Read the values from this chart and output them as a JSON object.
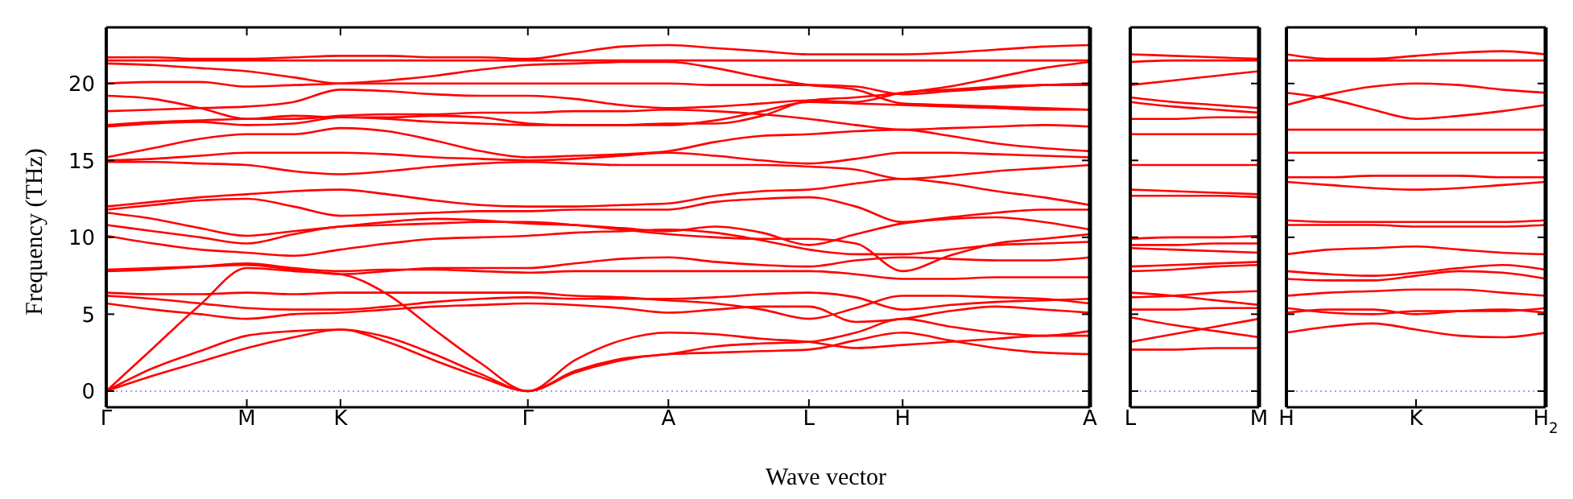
{
  "chart_data": [
    {
      "type": "line",
      "ylabel": "Frequency (THz)",
      "xlabel": "Wave vector",
      "categories": [
        "Γ",
        null,
        null,
        "M",
        null,
        "K",
        null,
        null,
        null,
        "Γ",
        null,
        null,
        "A",
        null,
        null,
        "L",
        null,
        "H",
        null,
        null,
        null,
        "A"
      ],
      "ylim": [
        -1.05,
        23.65
      ],
      "yticks": [
        0,
        5,
        10,
        15,
        20
      ],
      "ref_lines": [
        {
          "axis": "y",
          "value": 0,
          "color": "#8080ff",
          "line_style": "dotted"
        }
      ],
      "series": [
        {
          "color": "#ff0000",
          "values": [
            0,
            1.0,
            1.9,
            2.8,
            3.5,
            4.0,
            3.2,
            2.0,
            0.9,
            0,
            1.2,
            2.0,
            2.4,
            2.5,
            2.6,
            2.7,
            3.3,
            3.8,
            3.3,
            2.8,
            2.5,
            2.4
          ]
        },
        {
          "color": "#ff0000",
          "values": [
            0,
            1.5,
            2.6,
            3.6,
            3.9,
            4.0,
            3.5,
            2.4,
            1.1,
            0,
            1.3,
            2.1,
            2.4,
            2.9,
            3.1,
            3.2,
            3.8,
            4.7,
            4.2,
            3.8,
            3.6,
            3.9
          ]
        },
        {
          "color": "#ff0000",
          "values": [
            0,
            2.8,
            5.6,
            8.0,
            7.8,
            7.6,
            6.3,
            4.0,
            1.8,
            0,
            2.0,
            3.3,
            3.8,
            3.7,
            3.4,
            3.2,
            2.8,
            3.0,
            3.2,
            3.4,
            3.6,
            3.6
          ]
        },
        {
          "color": "#ff0000",
          "values": [
            5.7,
            5.3,
            5.0,
            4.7,
            5.0,
            5.1,
            5.3,
            5.5,
            5.6,
            5.7,
            5.6,
            5.4,
            5.1,
            5.3,
            5.5,
            5.5,
            4.5,
            4.7,
            5.2,
            5.5,
            5.3,
            5.1
          ]
        },
        {
          "color": "#ff0000",
          "values": [
            6.2,
            6.0,
            5.7,
            5.4,
            5.3,
            5.3,
            5.5,
            5.8,
            6.0,
            6.1,
            6.0,
            6.0,
            6.0,
            6.1,
            6.3,
            6.4,
            6.1,
            5.3,
            5.6,
            5.8,
            5.9,
            6.0
          ]
        },
        {
          "color": "#ff0000",
          "values": [
            6.4,
            6.3,
            6.3,
            6.4,
            6.3,
            6.4,
            6.4,
            6.4,
            6.4,
            6.4,
            6.2,
            6.1,
            5.9,
            5.7,
            5.3,
            4.7,
            5.4,
            6.2,
            6.2,
            6.1,
            6.0,
            5.7
          ]
        },
        {
          "color": "#ff0000",
          "values": [
            7.8,
            7.9,
            8.1,
            8.3,
            8.0,
            7.8,
            7.9,
            7.9,
            7.8,
            7.7,
            7.8,
            7.8,
            7.8,
            7.8,
            7.8,
            7.8,
            7.6,
            7.3,
            7.3,
            7.4,
            7.4,
            7.4
          ]
        },
        {
          "color": "#ff0000",
          "values": [
            7.9,
            8.0,
            8.1,
            8.2,
            7.9,
            7.6,
            7.8,
            8.0,
            8.0,
            8.0,
            8.3,
            8.6,
            8.7,
            8.4,
            8.2,
            8.1,
            8.5,
            8.7,
            8.6,
            8.5,
            8.5,
            8.7
          ]
        },
        {
          "color": "#ff0000",
          "values": [
            10.1,
            9.6,
            9.2,
            9.0,
            8.8,
            9.2,
            9.6,
            9.9,
            10.0,
            10.1,
            10.3,
            10.4,
            10.5,
            10.3,
            9.8,
            9.2,
            8.9,
            8.9,
            9.2,
            9.5,
            9.6,
            9.7
          ]
        },
        {
          "color": "#ff0000",
          "values": [
            10.8,
            10.4,
            10.0,
            9.6,
            10.2,
            10.7,
            10.8,
            10.9,
            11.0,
            11.0,
            10.8,
            10.5,
            10.2,
            10.0,
            9.9,
            9.9,
            9.6,
            7.8,
            8.8,
            9.6,
            9.9,
            10.2
          ]
        },
        {
          "color": "#ff0000",
          "values": [
            11.6,
            11.2,
            10.6,
            10.1,
            10.4,
            10.7,
            11.0,
            11.2,
            11.1,
            10.9,
            10.8,
            10.6,
            10.4,
            10.7,
            10.3,
            9.5,
            10.2,
            10.9,
            11.2,
            11.3,
            11.0,
            10.5
          ]
        },
        {
          "color": "#ff0000",
          "values": [
            11.8,
            12.1,
            12.4,
            12.5,
            12.0,
            11.4,
            11.5,
            11.6,
            11.7,
            11.7,
            11.8,
            11.8,
            11.8,
            12.3,
            12.5,
            12.6,
            12.0,
            11.0,
            11.3,
            11.6,
            11.8,
            11.8
          ]
        },
        {
          "color": "#ff0000",
          "values": [
            12.0,
            12.3,
            12.6,
            12.8,
            13.0,
            13.1,
            12.8,
            12.4,
            12.1,
            12.0,
            12.0,
            12.1,
            12.2,
            12.7,
            13.0,
            13.1,
            13.5,
            13.8,
            13.5,
            13.0,
            12.6,
            12.1
          ]
        },
        {
          "color": "#ff0000",
          "values": [
            14.9,
            14.9,
            14.8,
            14.7,
            14.3,
            14.1,
            14.3,
            14.6,
            14.8,
            14.9,
            14.8,
            14.7,
            14.7,
            14.7,
            14.7,
            14.6,
            14.4,
            13.8,
            14.0,
            14.3,
            14.5,
            14.7
          ]
        },
        {
          "color": "#ff0000",
          "values": [
            15.0,
            15.1,
            15.3,
            15.5,
            15.5,
            15.5,
            15.4,
            15.2,
            15.1,
            15.0,
            15.1,
            15.3,
            15.5,
            15.3,
            15.0,
            14.8,
            15.1,
            15.5,
            15.5,
            15.4,
            15.3,
            15.2
          ]
        },
        {
          "color": "#ff0000",
          "values": [
            15.2,
            15.8,
            16.4,
            16.7,
            16.7,
            17.1,
            16.9,
            16.3,
            15.6,
            15.2,
            15.3,
            15.4,
            15.6,
            16.2,
            16.6,
            16.7,
            16.9,
            17.0,
            16.6,
            16.1,
            15.8,
            15.6
          ]
        },
        {
          "color": "#ff0000",
          "values": [
            17.2,
            17.4,
            17.5,
            17.3,
            17.4,
            17.8,
            17.7,
            17.5,
            17.4,
            17.3,
            17.3,
            17.3,
            17.3,
            17.6,
            18.2,
            18.8,
            18.7,
            18.6,
            18.5,
            18.4,
            18.3,
            18.3
          ]
        },
        {
          "color": "#ff0000",
          "values": [
            17.3,
            17.5,
            17.6,
            17.7,
            17.7,
            17.9,
            18.0,
            18.0,
            18.1,
            18.1,
            18.2,
            18.2,
            18.3,
            18.2,
            18.0,
            17.7,
            17.3,
            17.0,
            17.1,
            17.2,
            17.3,
            17.2
          ]
        },
        {
          "color": "#ff0000",
          "values": [
            18.2,
            18.3,
            18.4,
            18.5,
            18.8,
            19.6,
            19.5,
            19.3,
            19.2,
            19.2,
            19.0,
            18.6,
            18.4,
            18.5,
            18.7,
            18.9,
            18.8,
            19.4,
            19.6,
            19.8,
            19.9,
            19.9
          ]
        },
        {
          "color": "#ff0000",
          "values": [
            19.2,
            19.0,
            18.4,
            17.7,
            17.9,
            17.8,
            17.8,
            17.9,
            17.8,
            17.4,
            17.3,
            17.3,
            17.4,
            17.4,
            17.9,
            18.9,
            19.1,
            19.4,
            19.8,
            20.4,
            21.0,
            21.4
          ]
        },
        {
          "color": "#ff0000",
          "values": [
            20.0,
            20.1,
            20.1,
            19.8,
            19.9,
            20.0,
            20.2,
            20.5,
            20.9,
            21.2,
            21.3,
            21.4,
            21.4,
            21.0,
            20.4,
            19.9,
            19.6,
            18.7,
            18.6,
            18.5,
            18.4,
            18.3
          ]
        },
        {
          "color": "#ff0000",
          "values": [
            21.3,
            21.2,
            21.0,
            20.8,
            20.4,
            20.0,
            20.0,
            20.0,
            20.0,
            20.0,
            20.0,
            20.0,
            20.0,
            19.9,
            19.9,
            19.9,
            19.8,
            19.3,
            19.5,
            19.7,
            19.9,
            20.0
          ]
        },
        {
          "color": "#ff0000",
          "values": [
            21.5,
            21.5,
            21.5,
            21.5,
            21.5,
            21.5,
            21.5,
            21.5,
            21.5,
            21.5,
            21.5,
            21.5,
            21.5,
            21.5,
            21.5,
            21.5,
            21.5,
            21.5,
            21.5,
            21.5,
            21.5,
            21.5
          ]
        },
        {
          "color": "#ff0000",
          "values": [
            21.7,
            21.7,
            21.6,
            21.6,
            21.7,
            21.8,
            21.8,
            21.7,
            21.7,
            21.6,
            22.0,
            22.4,
            22.5,
            22.3,
            22.1,
            21.9,
            21.9,
            21.9,
            22.0,
            22.2,
            22.4,
            22.5
          ]
        }
      ]
    },
    {
      "type": "line",
      "tick_labels": "x",
      "categories": [
        "L",
        null,
        null,
        "M"
      ],
      "ylim": [
        -1.05,
        23.65
      ],
      "yticks": [
        0,
        5,
        10,
        15,
        20
      ],
      "ref_lines": [
        {
          "axis": "y",
          "value": 0,
          "color": "#8080ff",
          "line_style": "dotted"
        }
      ],
      "series": [
        {
          "color": "#ff0000",
          "values": [
            2.7,
            2.7,
            2.8,
            2.8
          ]
        },
        {
          "color": "#ff0000",
          "values": [
            3.2,
            3.7,
            4.2,
            4.7
          ]
        },
        {
          "color": "#ff0000",
          "values": [
            4.8,
            4.3,
            3.9,
            3.5
          ]
        },
        {
          "color": "#ff0000",
          "values": [
            5.3,
            5.3,
            5.4,
            5.4
          ]
        },
        {
          "color": "#ff0000",
          "values": [
            6.1,
            6.2,
            6.4,
            6.5
          ]
        },
        {
          "color": "#ff0000",
          "values": [
            6.4,
            6.2,
            5.9,
            5.6
          ]
        },
        {
          "color": "#ff0000",
          "values": [
            7.8,
            7.9,
            8.1,
            8.2
          ]
        },
        {
          "color": "#ff0000",
          "values": [
            8.1,
            8.2,
            8.3,
            8.4
          ]
        },
        {
          "color": "#ff0000",
          "values": [
            9.3,
            9.2,
            9.1,
            9.0
          ]
        },
        {
          "color": "#ff0000",
          "values": [
            9.5,
            9.5,
            9.6,
            9.6
          ]
        },
        {
          "color": "#ff0000",
          "values": [
            9.9,
            10.0,
            10.0,
            10.1
          ]
        },
        {
          "color": "#ff0000",
          "values": [
            12.7,
            12.7,
            12.7,
            12.6
          ]
        },
        {
          "color": "#ff0000",
          "values": [
            13.1,
            13.0,
            12.9,
            12.8
          ]
        },
        {
          "color": "#ff0000",
          "values": [
            14.7,
            14.7,
            14.7,
            14.7
          ]
        },
        {
          "color": "#ff0000",
          "values": [
            16.7,
            16.7,
            16.7,
            16.7
          ]
        },
        {
          "color": "#ff0000",
          "values": [
            17.7,
            17.7,
            17.8,
            17.8
          ]
        },
        {
          "color": "#ff0000",
          "values": [
            18.8,
            18.5,
            18.3,
            18.1
          ]
        },
        {
          "color": "#ff0000",
          "values": [
            19.1,
            18.8,
            18.6,
            18.4
          ]
        },
        {
          "color": "#ff0000",
          "values": [
            19.9,
            20.2,
            20.5,
            20.8
          ]
        },
        {
          "color": "#ff0000",
          "values": [
            21.4,
            21.5,
            21.5,
            21.5
          ]
        },
        {
          "color": "#ff0000",
          "values": [
            21.9,
            21.8,
            21.7,
            21.6
          ]
        }
      ]
    },
    {
      "type": "line",
      "tick_labels": "x",
      "categories": [
        "H",
        null,
        null,
        "K",
        null,
        null,
        "H$_{2}$"
      ],
      "ylim": [
        -1.05,
        23.65
      ],
      "yticks": [
        0,
        5,
        10,
        15,
        20
      ],
      "ref_lines": [
        {
          "axis": "y",
          "value": 0,
          "color": "#8080ff",
          "line_style": "dotted"
        }
      ],
      "series": [
        {
          "color": "#ff0000",
          "values": [
            3.8,
            4.2,
            4.4,
            4.0,
            3.6,
            3.5,
            3.8
          ]
        },
        {
          "color": "#ff0000",
          "values": [
            5.4,
            5.1,
            5.0,
            5.2,
            5.2,
            5.2,
            5.4
          ]
        },
        {
          "color": "#ff0000",
          "values": [
            5.1,
            5.3,
            5.3,
            5.0,
            5.2,
            5.3,
            5.1
          ]
        },
        {
          "color": "#ff0000",
          "values": [
            6.2,
            6.4,
            6.5,
            6.6,
            6.6,
            6.4,
            6.2
          ]
        },
        {
          "color": "#ff0000",
          "values": [
            7.3,
            7.2,
            7.2,
            7.5,
            7.8,
            7.7,
            7.3
          ]
        },
        {
          "color": "#ff0000",
          "values": [
            7.8,
            7.6,
            7.5,
            7.7,
            8.0,
            8.2,
            7.9
          ]
        },
        {
          "color": "#ff0000",
          "values": [
            8.9,
            9.2,
            9.3,
            9.4,
            9.2,
            9.0,
            8.9
          ]
        },
        {
          "color": "#ff0000",
          "values": [
            10.8,
            10.8,
            10.8,
            10.7,
            10.7,
            10.7,
            10.8
          ]
        },
        {
          "color": "#ff0000",
          "values": [
            11.1,
            11.0,
            11.0,
            11.0,
            11.0,
            11.0,
            11.1
          ]
        },
        {
          "color": "#ff0000",
          "values": [
            13.9,
            13.9,
            14.0,
            14.0,
            14.0,
            13.9,
            13.9
          ]
        },
        {
          "color": "#ff0000",
          "values": [
            13.6,
            13.4,
            13.2,
            13.1,
            13.2,
            13.4,
            13.6
          ]
        },
        {
          "color": "#ff0000",
          "values": [
            15.5,
            15.5,
            15.5,
            15.5,
            15.5,
            15.5,
            15.5
          ]
        },
        {
          "color": "#ff0000",
          "values": [
            17.0,
            17.0,
            17.0,
            17.0,
            17.0,
            17.0,
            17.0
          ]
        },
        {
          "color": "#ff0000",
          "values": [
            18.6,
            19.3,
            19.8,
            20.0,
            19.9,
            19.6,
            19.4
          ]
        },
        {
          "color": "#ff0000",
          "values": [
            19.4,
            19.0,
            18.3,
            17.7,
            17.9,
            18.2,
            18.6
          ]
        },
        {
          "color": "#ff0000",
          "values": [
            21.5,
            21.5,
            21.5,
            21.5,
            21.5,
            21.5,
            21.5
          ]
        },
        {
          "color": "#ff0000",
          "values": [
            21.9,
            21.6,
            21.6,
            21.8,
            22.0,
            22.1,
            21.9
          ]
        }
      ]
    }
  ]
}
